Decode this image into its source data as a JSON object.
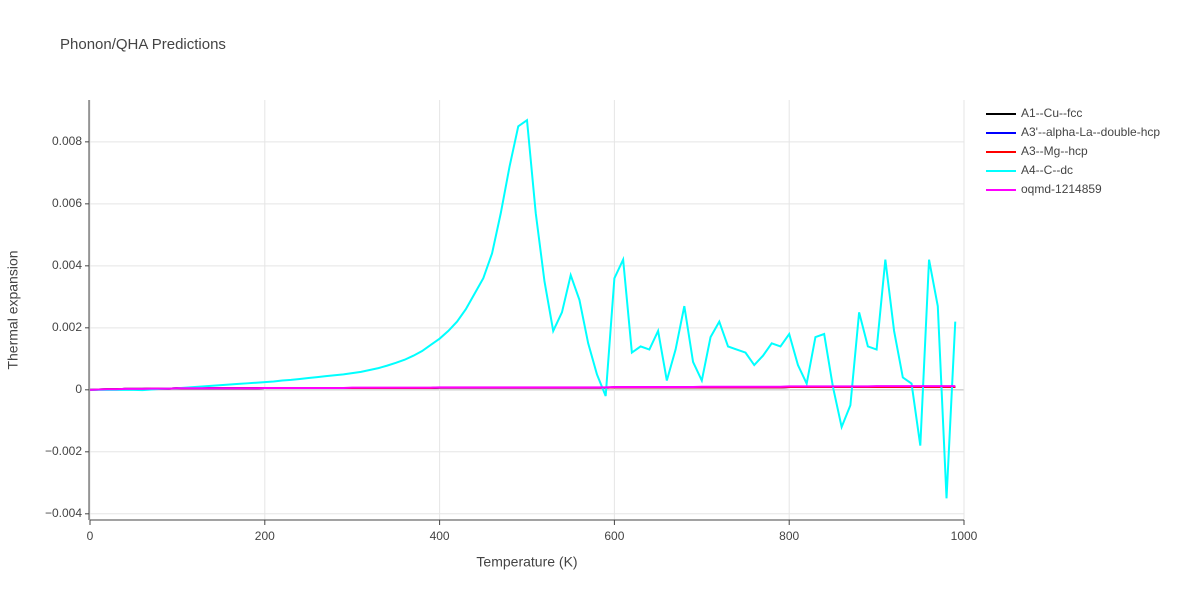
{
  "chart_data": {
    "type": "line",
    "title": "Phonon/QHA Predictions",
    "x_label": "Temperature (K)",
    "y_label": "Thermal expansion",
    "x": [
      0,
      10,
      20,
      30,
      40,
      50,
      60,
      70,
      80,
      90,
      100,
      110,
      120,
      130,
      140,
      150,
      160,
      170,
      180,
      190,
      200,
      210,
      220,
      230,
      240,
      250,
      260,
      270,
      280,
      290,
      300,
      310,
      320,
      330,
      340,
      350,
      360,
      370,
      380,
      390,
      400,
      410,
      420,
      430,
      440,
      450,
      460,
      470,
      480,
      490,
      500,
      510,
      520,
      530,
      540,
      550,
      560,
      570,
      580,
      590,
      600,
      610,
      620,
      630,
      640,
      650,
      660,
      670,
      680,
      690,
      700,
      710,
      720,
      730,
      740,
      750,
      760,
      770,
      780,
      790,
      800,
      810,
      820,
      830,
      840,
      850,
      860,
      870,
      880,
      890,
      900,
      910,
      920,
      930,
      940,
      950,
      960,
      970,
      980,
      990
    ],
    "series": [
      {
        "name": "A1--Cu--fcc",
        "color": "#000000",
        "values": [
          0,
          1e-05,
          2e-05,
          2e-05,
          3e-05,
          3e-05,
          3e-05,
          4e-05,
          4e-05,
          4e-05,
          5e-05,
          5e-05,
          5e-05,
          5e-05,
          5e-05,
          5e-05,
          5e-05,
          5e-05,
          5e-05,
          5e-05,
          6e-05,
          6e-05,
          6e-05,
          6e-05,
          6e-05,
          6e-05,
          6e-05,
          6e-05,
          6e-05,
          6e-05,
          6e-05,
          6e-05,
          6e-05,
          6e-05,
          6e-05,
          6e-05,
          6e-05,
          6e-05,
          6e-05,
          6e-05,
          7e-05,
          7e-05,
          7e-05,
          7e-05,
          7e-05,
          7e-05,
          7e-05,
          7e-05,
          7e-05,
          7e-05,
          7e-05,
          7e-05,
          7e-05,
          7e-05,
          7e-05,
          7e-05,
          7e-05,
          7e-05,
          7e-05,
          7e-05,
          8e-05,
          8e-05,
          8e-05,
          8e-05,
          8e-05,
          8e-05,
          8e-05,
          8e-05,
          8e-05,
          8e-05,
          8e-05,
          8e-05,
          8e-05,
          8e-05,
          8e-05,
          8e-05,
          8e-05,
          8e-05,
          8e-05,
          8e-05,
          9e-05,
          9e-05,
          9e-05,
          9e-05,
          9e-05,
          9e-05,
          9e-05,
          9e-05,
          9e-05,
          9e-05,
          9e-05,
          9e-05,
          9e-05,
          9e-05,
          9e-05,
          9e-05,
          9e-05,
          9e-05,
          9e-05,
          9e-05
        ]
      },
      {
        "name": "A3'--alpha-La--double-hcp",
        "color": "#0000ff",
        "values": [
          0,
          1e-05,
          2e-05,
          2e-05,
          3e-05,
          3e-05,
          3e-05,
          4e-05,
          4e-05,
          4e-05,
          5e-05,
          5e-05,
          5e-05,
          5e-05,
          5e-05,
          5e-05,
          5e-05,
          5e-05,
          5e-05,
          5e-05,
          6e-05,
          6e-05,
          6e-05,
          6e-05,
          6e-05,
          6e-05,
          6e-05,
          6e-05,
          6e-05,
          6e-05,
          6e-05,
          6e-05,
          6e-05,
          6e-05,
          6e-05,
          6e-05,
          6e-05,
          6e-05,
          6e-05,
          6e-05,
          7e-05,
          7e-05,
          7e-05,
          7e-05,
          7e-05,
          7e-05,
          7e-05,
          7e-05,
          7e-05,
          7e-05,
          7e-05,
          7e-05,
          7e-05,
          7e-05,
          7e-05,
          7e-05,
          7e-05,
          7e-05,
          7e-05,
          7e-05,
          8e-05,
          8e-05,
          8e-05,
          8e-05,
          8e-05,
          8e-05,
          8e-05,
          8e-05,
          8e-05,
          8e-05,
          8e-05,
          8e-05,
          8e-05,
          8e-05,
          8e-05,
          8e-05,
          8e-05,
          8e-05,
          8e-05,
          8e-05,
          9e-05,
          9e-05,
          9e-05,
          9e-05,
          9e-05,
          9e-05,
          9e-05,
          9e-05,
          9e-05,
          9e-05,
          0.0001,
          0.0001,
          0.0001,
          0.0001,
          0.0001,
          0.0001,
          0.0001,
          0.0001,
          0.0001,
          0.0001
        ]
      },
      {
        "name": "A3--Mg--hcp",
        "color": "#ff0000",
        "values": [
          0,
          1e-05,
          2e-05,
          2e-05,
          3e-05,
          3e-05,
          3e-05,
          4e-05,
          4e-05,
          4e-05,
          5e-05,
          5e-05,
          5e-05,
          5e-05,
          5e-05,
          5e-05,
          5e-05,
          5e-05,
          5e-05,
          5e-05,
          6e-05,
          6e-05,
          6e-05,
          6e-05,
          6e-05,
          6e-05,
          6e-05,
          6e-05,
          6e-05,
          6e-05,
          6e-05,
          6e-05,
          6e-05,
          6e-05,
          6e-05,
          6e-05,
          6e-05,
          6e-05,
          6e-05,
          6e-05,
          7e-05,
          7e-05,
          7e-05,
          7e-05,
          7e-05,
          7e-05,
          7e-05,
          7e-05,
          7e-05,
          7e-05,
          7e-05,
          7e-05,
          7e-05,
          7e-05,
          7e-05,
          7e-05,
          7e-05,
          7e-05,
          7e-05,
          7e-05,
          8e-05,
          8e-05,
          8e-05,
          8e-05,
          8e-05,
          8e-05,
          8e-05,
          8e-05,
          8e-05,
          8e-05,
          8e-05,
          8e-05,
          8e-05,
          8e-05,
          8e-05,
          8e-05,
          8e-05,
          8e-05,
          8e-05,
          8e-05,
          9e-05,
          9e-05,
          9e-05,
          9e-05,
          9e-05,
          9e-05,
          9e-05,
          9e-05,
          9e-05,
          9e-05,
          9e-05,
          9e-05,
          9e-05,
          9e-05,
          9e-05,
          9e-05,
          9e-05,
          9e-05,
          9e-05,
          9e-05
        ]
      },
      {
        "name": "A4--C--dc",
        "color": "#00ffff",
        "values": [
          0,
          0,
          0,
          0,
          0,
          0,
          -1e-05,
          1e-05,
          3e-05,
          4e-05,
          5e-05,
          7e-05,
          9e-05,
          0.00011,
          0.00013,
          0.00015,
          0.00017,
          0.00019,
          0.00021,
          0.00023,
          0.00025,
          0.00027,
          0.0003,
          0.00032,
          0.00035,
          0.00038,
          0.00041,
          0.00044,
          0.00047,
          0.0005,
          0.00054,
          0.00058,
          0.00064,
          0.0007,
          0.00078,
          0.00087,
          0.00097,
          0.0011,
          0.00125,
          0.00145,
          0.00165,
          0.0019,
          0.0022,
          0.0026,
          0.0031,
          0.0036,
          0.0044,
          0.0057,
          0.0072,
          0.0085,
          0.0087,
          0.0057,
          0.0035,
          0.0019,
          0.0025,
          0.0037,
          0.0029,
          0.0015,
          0.0005,
          -0.0002,
          0.0036,
          0.0042,
          0.0012,
          0.0014,
          0.0013,
          0.0019,
          0.0003,
          0.0013,
          0.0027,
          0.0009,
          0.0003,
          0.0017,
          0.0022,
          0.0014,
          0.0013,
          0.0012,
          0.0008,
          0.0011,
          0.0015,
          0.0014,
          0.0018,
          0.0008,
          0.0002,
          0.0017,
          0.0018,
          0.0001,
          -0.0012,
          -0.0005,
          0.0025,
          0.0014,
          0.0013,
          0.0042,
          0.0019,
          0.0004,
          0.0002,
          -0.0018,
          0.0042,
          0.0027,
          -0.0035,
          0.0022
        ]
      },
      {
        "name": "oqmd-1214859",
        "color": "#ff00ff",
        "values": [
          0,
          1e-05,
          2e-05,
          2e-05,
          3e-05,
          3e-05,
          3e-05,
          4e-05,
          4e-05,
          4e-05,
          5e-05,
          5e-05,
          5e-05,
          5e-05,
          5e-05,
          5e-05,
          5e-05,
          5e-05,
          5e-05,
          5e-05,
          6e-05,
          6e-05,
          6e-05,
          6e-05,
          6e-05,
          6e-05,
          6e-05,
          6e-05,
          6e-05,
          6e-05,
          7e-05,
          7e-05,
          7e-05,
          7e-05,
          7e-05,
          7e-05,
          7e-05,
          7e-05,
          7e-05,
          7e-05,
          8e-05,
          8e-05,
          8e-05,
          8e-05,
          8e-05,
          8e-05,
          8e-05,
          8e-05,
          8e-05,
          8e-05,
          8e-05,
          8e-05,
          8e-05,
          8e-05,
          8e-05,
          8e-05,
          8e-05,
          8e-05,
          8e-05,
          8e-05,
          9e-05,
          9e-05,
          9e-05,
          9e-05,
          9e-05,
          9e-05,
          9e-05,
          9e-05,
          9e-05,
          9e-05,
          0.0001,
          0.0001,
          0.0001,
          0.0001,
          0.0001,
          0.0001,
          0.0001,
          0.0001,
          0.0001,
          0.0001,
          0.00011,
          0.00011,
          0.00011,
          0.00011,
          0.00011,
          0.00011,
          0.00011,
          0.00011,
          0.00011,
          0.00011,
          0.00012,
          0.00012,
          0.00012,
          0.00012,
          0.00012,
          0.00012,
          0.00012,
          0.00012,
          0.00012,
          0.00012
        ]
      }
    ],
    "xlim": [
      0,
      1000
    ],
    "xticks": [
      0,
      200,
      400,
      600,
      800,
      1000
    ],
    "ylim": [
      -0.0042,
      0.00935
    ],
    "yticks": [
      {
        "value": -0.004,
        "label": "−0.004"
      },
      {
        "value": -0.002,
        "label": "−0.002"
      },
      0,
      0.002,
      0.004,
      0.006,
      0.008
    ],
    "grid": true,
    "legend": "right"
  }
}
